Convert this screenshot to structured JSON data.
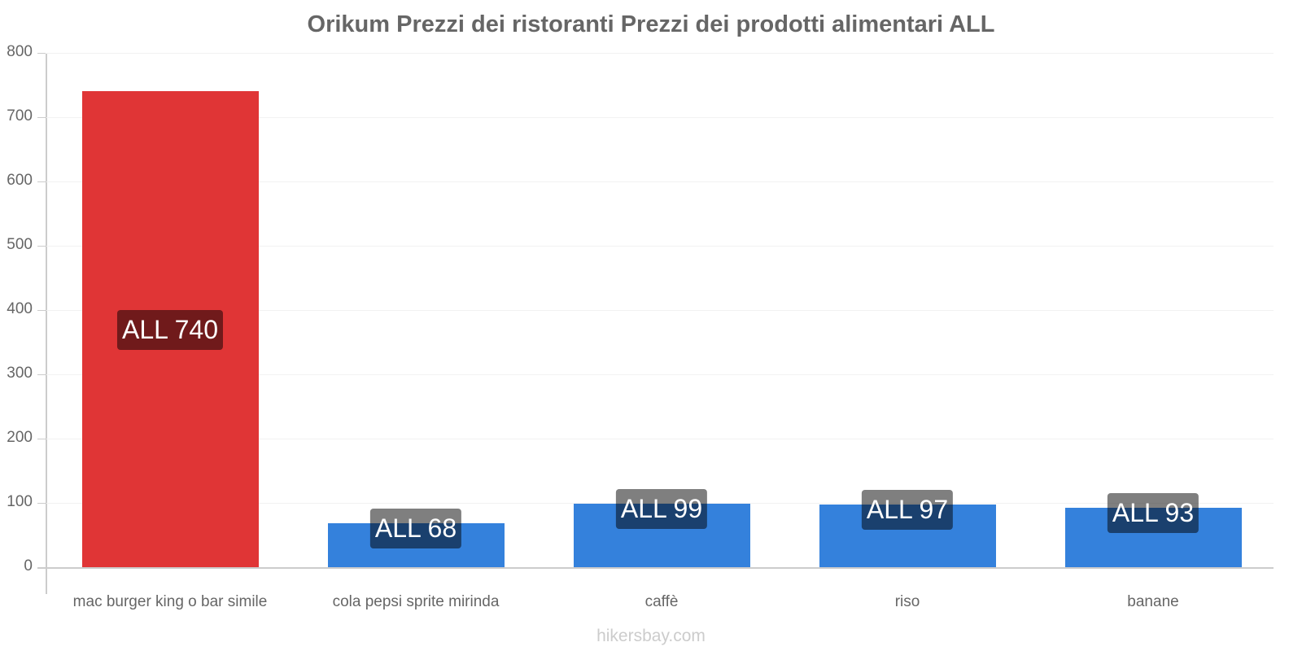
{
  "chart_data": {
    "type": "bar",
    "title": "Orikum Prezzi dei ristoranti Prezzi dei prodotti alimentari ALL",
    "categories": [
      "mac burger king o bar simile",
      "cola pepsi sprite mirinda",
      "caffè",
      "riso",
      "banane"
    ],
    "values": [
      740,
      68,
      99,
      97,
      93
    ],
    "value_labels": [
      "ALL 740",
      "ALL 68",
      "ALL 99",
      "ALL 97",
      "ALL 93"
    ],
    "bar_colors": [
      "#e03536",
      "#3481dc",
      "#3481dc",
      "#3481dc",
      "#3481dc"
    ],
    "xlabel": "",
    "ylabel": "",
    "ylim": [
      0,
      800
    ],
    "yticks": [
      0,
      100,
      200,
      300,
      400,
      500,
      600,
      700,
      800
    ],
    "grid": true,
    "legend": null
  },
  "yticks_labels": [
    "0",
    "100",
    "200",
    "300",
    "400",
    "500",
    "600",
    "700",
    "800"
  ],
  "watermark": "hikersbay.com"
}
